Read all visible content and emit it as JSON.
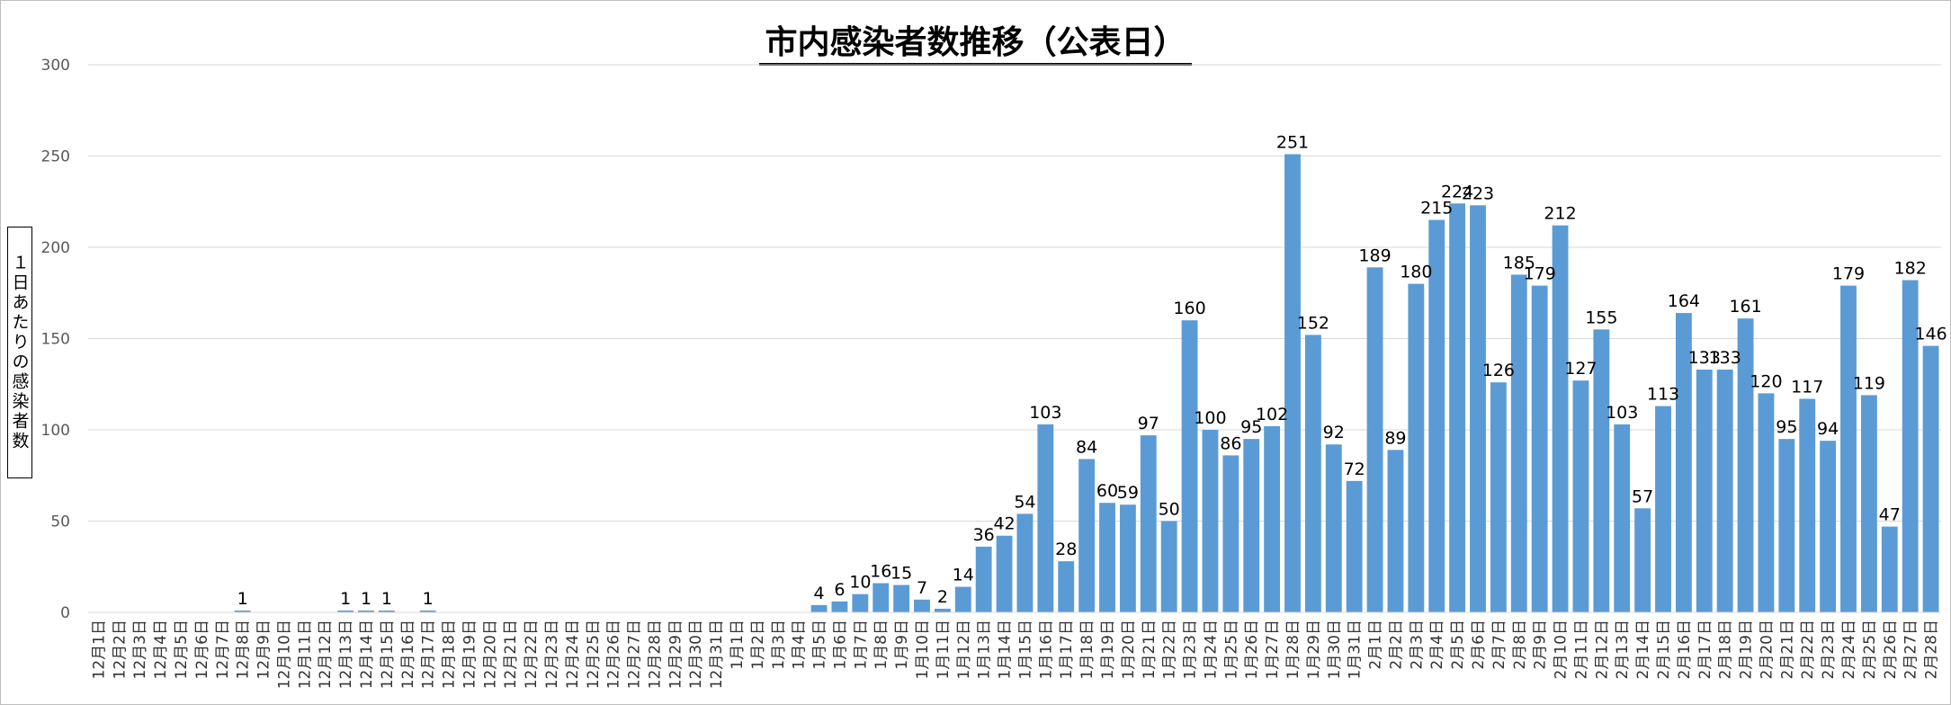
{
  "chart_data": {
    "type": "bar",
    "title": "市内感染者数推移（公表日）",
    "ylabel": "１日あたりの感染者数",
    "xlabel": "",
    "ylim": [
      0,
      300
    ],
    "yticks": [
      0,
      50,
      100,
      150,
      200,
      250,
      300
    ],
    "grid": true,
    "bar_color": "#5b9bd5",
    "categories": [
      "12月1日",
      "12月2日",
      "12月3日",
      "12月4日",
      "12月5日",
      "12月6日",
      "12月7日",
      "12月8日",
      "12月9日",
      "12月10日",
      "12月11日",
      "12月12日",
      "12月13日",
      "12月14日",
      "12月15日",
      "12月16日",
      "12月17日",
      "12月18日",
      "12月19日",
      "12月20日",
      "12月21日",
      "12月22日",
      "12月23日",
      "12月24日",
      "12月25日",
      "12月26日",
      "12月27日",
      "12月28日",
      "12月29日",
      "12月30日",
      "12月31日",
      "1月1日",
      "1月2日",
      "1月3日",
      "1月4日",
      "1月5日",
      "1月6日",
      "1月7日",
      "1月8日",
      "1月9日",
      "1月10日",
      "1月11日",
      "1月12日",
      "1月13日",
      "1月14日",
      "1月15日",
      "1月16日",
      "1月17日",
      "1月18日",
      "1月19日",
      "1月20日",
      "1月21日",
      "1月22日",
      "1月23日",
      "1月24日",
      "1月25日",
      "1月26日",
      "1月27日",
      "1月28日",
      "1月29日",
      "1月30日",
      "1月31日",
      "2月1日",
      "2月2日",
      "2月3日",
      "2月4日",
      "2月5日",
      "2月6日",
      "2月7日",
      "2月8日",
      "2月9日",
      "2月10日",
      "2月11日",
      "2月12日",
      "2月13日",
      "2月14日",
      "2月15日",
      "2月16日",
      "2月17日",
      "2月18日",
      "2月19日",
      "2月20日",
      "2月21日",
      "2月22日",
      "2月23日",
      "2月24日",
      "2月25日",
      "2月26日",
      "2月27日",
      "2月28日"
    ],
    "values": [
      0,
      0,
      0,
      0,
      0,
      0,
      0,
      1,
      0,
      0,
      0,
      0,
      1,
      1,
      1,
      0,
      1,
      0,
      0,
      0,
      0,
      0,
      0,
      0,
      0,
      0,
      0,
      0,
      0,
      0,
      0,
      0,
      0,
      0,
      0,
      4,
      6,
      10,
      16,
      15,
      7,
      2,
      14,
      36,
      42,
      54,
      103,
      28,
      84,
      60,
      59,
      97,
      50,
      160,
      100,
      86,
      95,
      102,
      251,
      152,
      92,
      72,
      189,
      89,
      180,
      215,
      224,
      223,
      126,
      185,
      179,
      212,
      127,
      155,
      103,
      57,
      113,
      164,
      133,
      133,
      161,
      120,
      95,
      117,
      94,
      179,
      119,
      47,
      182,
      146
    ]
  }
}
